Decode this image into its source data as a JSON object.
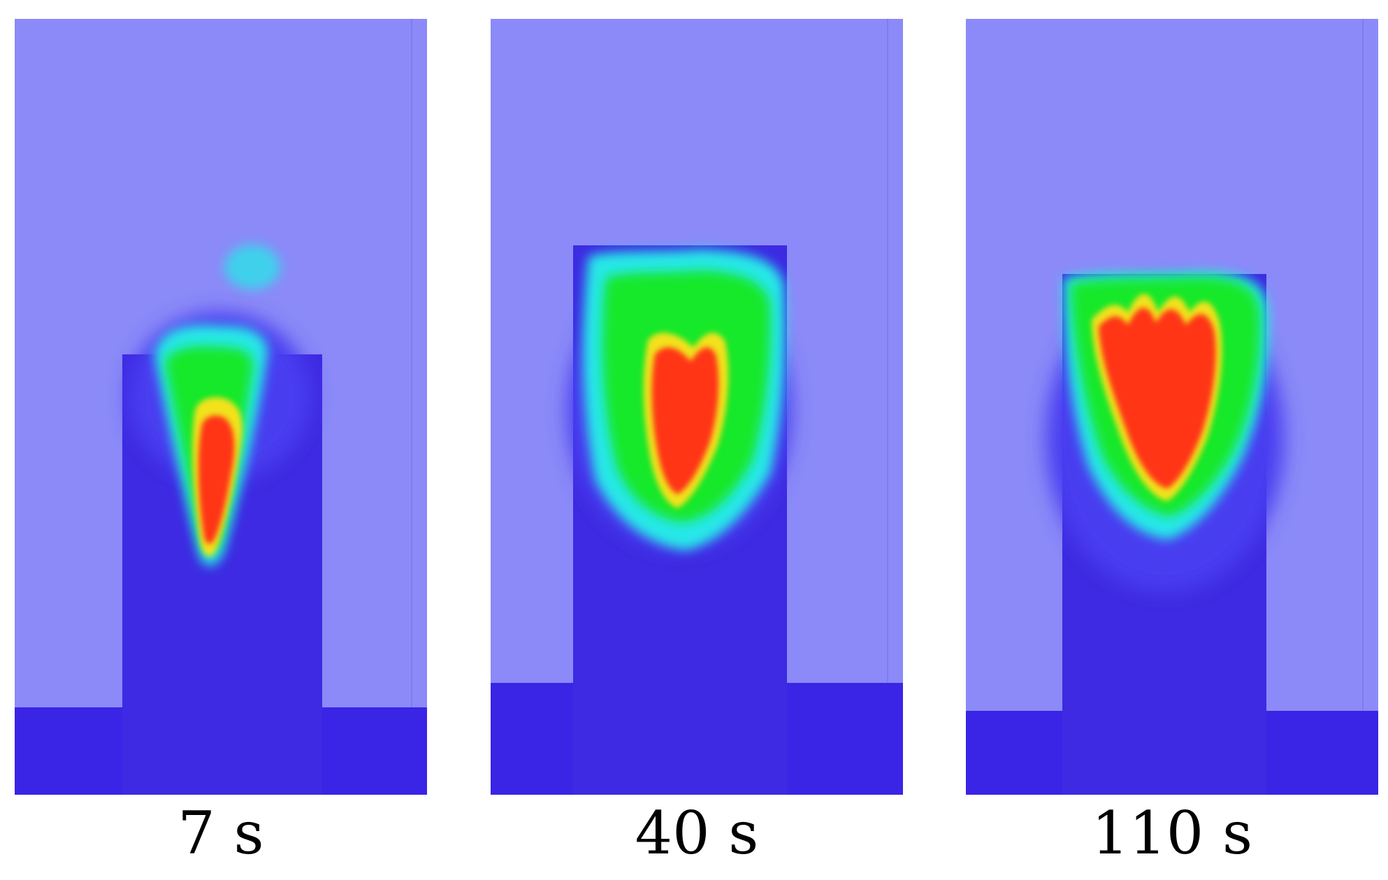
{
  "panels": [
    {
      "caption": "7 s"
    },
    {
      "caption": "40 s"
    },
    {
      "caption": "110 s"
    }
  ],
  "colors": {
    "background_wall": "#8b8af8",
    "floor": "#3a24e6",
    "compartment": "#3d2ae2",
    "heat_cold": "#4a3cf0",
    "heat_cyan": "#28e8e8",
    "heat_green": "#16e82a",
    "heat_yellow": "#f2e21a",
    "heat_hot": "#ff3418"
  }
}
